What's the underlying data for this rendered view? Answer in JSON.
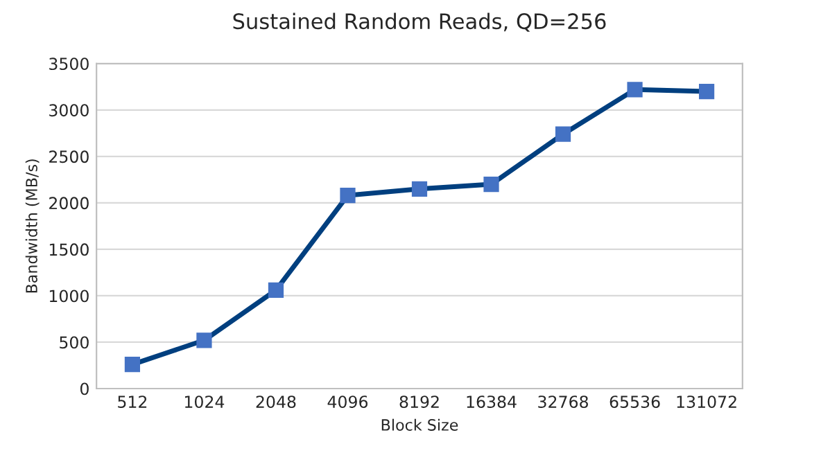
{
  "chart_data": {
    "type": "line",
    "title": "Sustained Random Reads, QD=256",
    "xlabel": "Block Size",
    "ylabel": "Bandwidth (MB/s)",
    "categories": [
      "512",
      "1024",
      "2048",
      "4096",
      "8192",
      "16384",
      "32768",
      "65536",
      "131072"
    ],
    "series": [
      {
        "color": "#003f7f",
        "values": [
          260,
          520,
          1060,
          2080,
          2150,
          2200,
          2740,
          3220,
          3200
        ]
      }
    ],
    "ylim": [
      0,
      3500
    ],
    "yticks": [
      0,
      500,
      1000,
      1500,
      2000,
      2500,
      3000,
      3500
    ],
    "grid": "y",
    "marker": "square",
    "line_style": "solid"
  }
}
